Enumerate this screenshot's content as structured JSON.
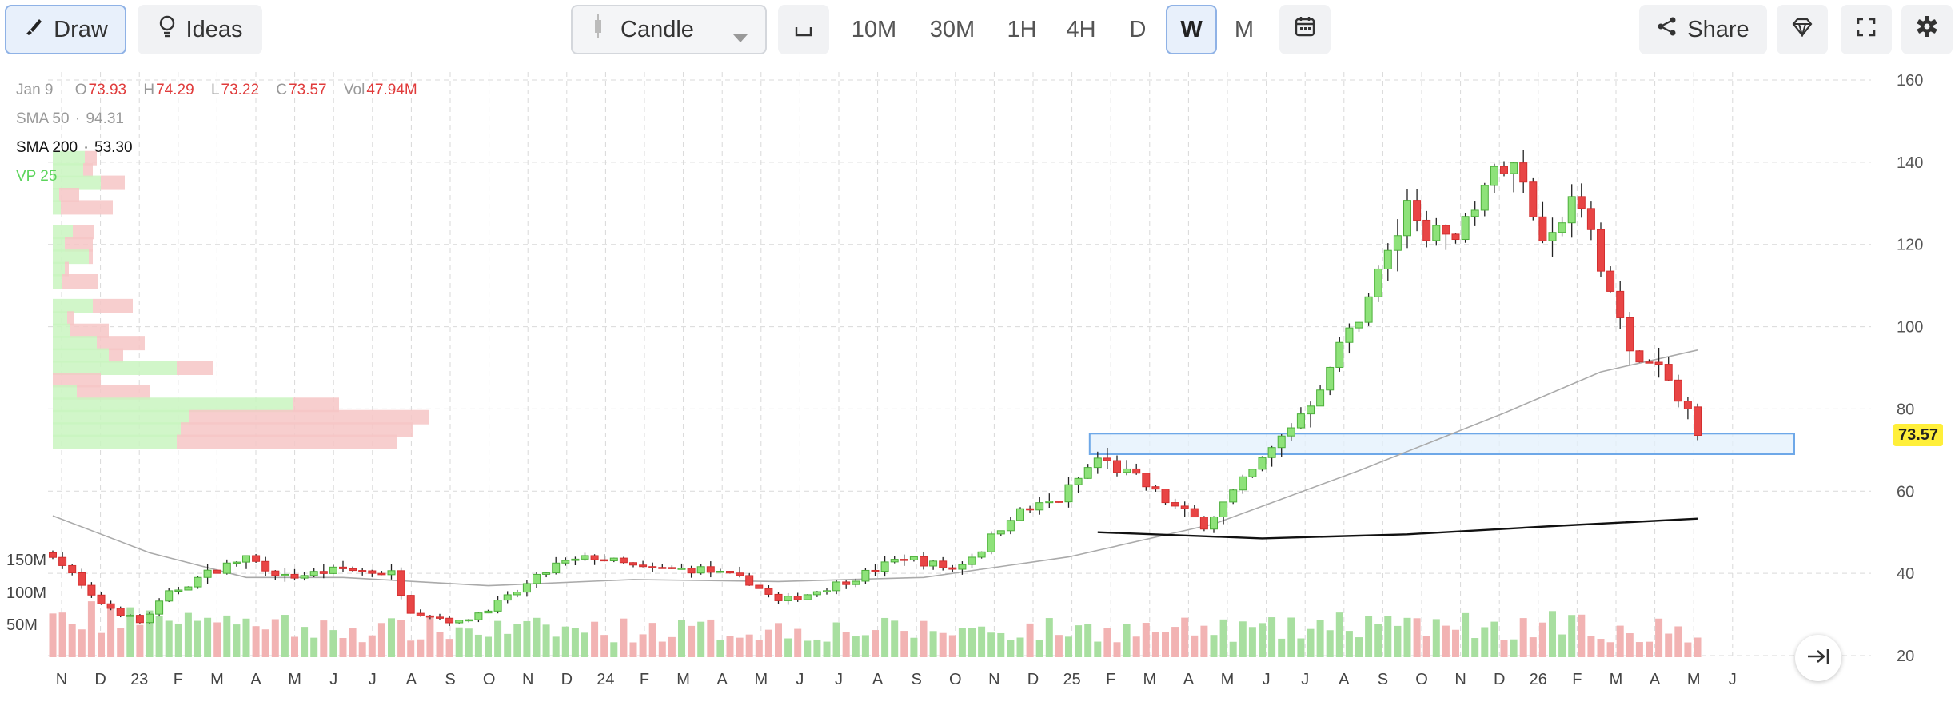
{
  "toolbar": {
    "draw_label": "Draw",
    "ideas_label": "Ideas",
    "chart_type": "Candle",
    "timeframes": [
      "10M",
      "30M",
      "1H",
      "4H",
      "D",
      "W",
      "M"
    ],
    "selected_timeframe": "W",
    "share_label": "Share",
    "icons": [
      "brush-icon",
      "bulb-icon",
      "candle-icon",
      "chevron-down-icon",
      "baseline-icon",
      "calendar-icon",
      "share-icon",
      "diamond-icon",
      "fullscreen-icon",
      "gear-icon",
      "scroll-to-latest-icon"
    ]
  },
  "legend": {
    "date": "Jan 9",
    "o_label": "O",
    "o": "73.93",
    "h_label": "H",
    "h": "74.29",
    "l_label": "L",
    "l": "73.22",
    "c_label": "C",
    "c": "73.57",
    "vol_label": "Vol",
    "vol": "47.94M",
    "sma50_label": "SMA 50",
    "sma50": "94.31",
    "sma200_label": "SMA 200",
    "sma200": "53.30",
    "vp_label": "VP 25",
    "sep": "·"
  },
  "colors": {
    "up": "#4caf3a",
    "up_fill": "#8ee27a",
    "down": "#d32f2f",
    "down_fill": "#e84545",
    "sma50": "#aaaaaa",
    "sma200": "#111111",
    "zone_fill": "#e3f0fc",
    "zone_border": "#6ea8e8",
    "last_price_bg": "#ffef3a"
  },
  "chart_data": {
    "type": "candlestick",
    "interval": "W",
    "y_range": [
      20,
      160
    ],
    "y_ticks": [
      "160",
      "140",
      "120",
      "100",
      "80",
      "60",
      "40",
      "20"
    ],
    "x_tick_labels": [
      "N",
      "D",
      "23",
      "F",
      "M",
      "A",
      "M",
      "J",
      "J",
      "A",
      "S",
      "O",
      "N",
      "D",
      "24",
      "F",
      "M",
      "A",
      "M",
      "J",
      "J",
      "A",
      "S",
      "O",
      "N",
      "D",
      "25",
      "F",
      "M",
      "A",
      "M",
      "J",
      "J",
      "A",
      "S",
      "O",
      "N",
      "D",
      "26",
      "F",
      "M",
      "A",
      "M",
      "J"
    ],
    "volume_ticks": [
      "150M",
      "100M",
      "50M"
    ],
    "last_price": "73.57",
    "anchors": [
      {
        "t": 0,
        "c": 45
      },
      {
        "t": 4,
        "c": 34
      },
      {
        "t": 9,
        "c": 28
      },
      {
        "t": 12,
        "c": 35
      },
      {
        "t": 16,
        "c": 40
      },
      {
        "t": 20,
        "c": 44
      },
      {
        "t": 24,
        "c": 39
      },
      {
        "t": 30,
        "c": 41
      },
      {
        "t": 35,
        "c": 40
      },
      {
        "t": 37,
        "c": 31
      },
      {
        "t": 42,
        "c": 28
      },
      {
        "t": 47,
        "c": 34
      },
      {
        "t": 52,
        "c": 42
      },
      {
        "t": 56,
        "c": 44
      },
      {
        "t": 61,
        "c": 41
      },
      {
        "t": 67,
        "c": 41
      },
      {
        "t": 72,
        "c": 38
      },
      {
        "t": 75,
        "c": 33
      },
      {
        "t": 78,
        "c": 35
      },
      {
        "t": 83,
        "c": 39
      },
      {
        "t": 88,
        "c": 44
      },
      {
        "t": 93,
        "c": 41
      },
      {
        "t": 96,
        "c": 46
      },
      {
        "t": 99,
        "c": 54
      },
      {
        "t": 104,
        "c": 58
      },
      {
        "t": 108,
        "c": 68
      },
      {
        "t": 112,
        "c": 63
      },
      {
        "t": 116,
        "c": 56
      },
      {
        "t": 119,
        "c": 52
      },
      {
        "t": 123,
        "c": 62
      },
      {
        "t": 126,
        "c": 70
      },
      {
        "t": 130,
        "c": 82
      },
      {
        "t": 135,
        "c": 103
      },
      {
        "t": 137,
        "c": 113
      },
      {
        "t": 140,
        "c": 128
      },
      {
        "t": 144,
        "c": 120
      },
      {
        "t": 148,
        "c": 135
      },
      {
        "t": 151,
        "c": 139
      },
      {
        "t": 154,
        "c": 123
      },
      {
        "t": 158,
        "c": 132
      },
      {
        "t": 163,
        "c": 93
      },
      {
        "t": 166,
        "c": 90
      },
      {
        "t": 168,
        "c": 82
      },
      {
        "t": 169,
        "c": 80
      },
      {
        "t": 170,
        "c": 73.57
      }
    ],
    "zone": {
      "from_t": 108,
      "to_t": 180,
      "low": 69,
      "high": 74
    },
    "sma50": [
      {
        "t": 0,
        "v": 54
      },
      {
        "t": 10,
        "v": 45
      },
      {
        "t": 20,
        "v": 39
      },
      {
        "t": 30,
        "v": 39
      },
      {
        "t": 45,
        "v": 37
      },
      {
        "t": 60,
        "v": 38.5
      },
      {
        "t": 75,
        "v": 38
      },
      {
        "t": 90,
        "v": 39
      },
      {
        "t": 105,
        "v": 44
      },
      {
        "t": 120,
        "v": 52
      },
      {
        "t": 135,
        "v": 65
      },
      {
        "t": 150,
        "v": 79
      },
      {
        "t": 160,
        "v": 89
      },
      {
        "t": 170,
        "v": 94.31
      }
    ],
    "sma200": [
      {
        "t": 108,
        "v": 50
      },
      {
        "t": 125,
        "v": 48.5
      },
      {
        "t": 140,
        "v": 49.5
      },
      {
        "t": 155,
        "v": 51.5
      },
      {
        "t": 170,
        "v": 53.3
      }
    ],
    "volume_profile": [
      {
        "p": 141,
        "buy": 40,
        "sell": 15
      },
      {
        "p": 138,
        "buy": 38,
        "sell": 12
      },
      {
        "p": 135,
        "buy": 60,
        "sell": 30
      },
      {
        "p": 132,
        "buy": 8,
        "sell": 25
      },
      {
        "p": 129,
        "buy": 10,
        "sell": 65
      },
      {
        "p": 123,
        "buy": 25,
        "sell": 27
      },
      {
        "p": 120,
        "buy": 15,
        "sell": 35
      },
      {
        "p": 117,
        "buy": 45,
        "sell": 5
      },
      {
        "p": 114,
        "buy": 15,
        "sell": 5
      },
      {
        "p": 111,
        "buy": 12,
        "sell": 45
      },
      {
        "p": 105,
        "buy": 50,
        "sell": 50
      },
      {
        "p": 102,
        "buy": 18,
        "sell": 8
      },
      {
        "p": 99,
        "buy": 22,
        "sell": 48
      },
      {
        "p": 96,
        "buy": 55,
        "sell": 60
      },
      {
        "p": 93,
        "buy": 70,
        "sell": 18
      },
      {
        "p": 90,
        "buy": 155,
        "sell": 45
      },
      {
        "p": 87,
        "buy": 0,
        "sell": 60
      },
      {
        "p": 84,
        "buy": 30,
        "sell": 92
      },
      {
        "p": 81,
        "buy": 300,
        "sell": 58
      },
      {
        "p": 78,
        "buy": 170,
        "sell": 300
      },
      {
        "p": 75,
        "buy": 160,
        "sell": 290
      },
      {
        "p": 72,
        "buy": 155,
        "sell": 275
      }
    ]
  }
}
